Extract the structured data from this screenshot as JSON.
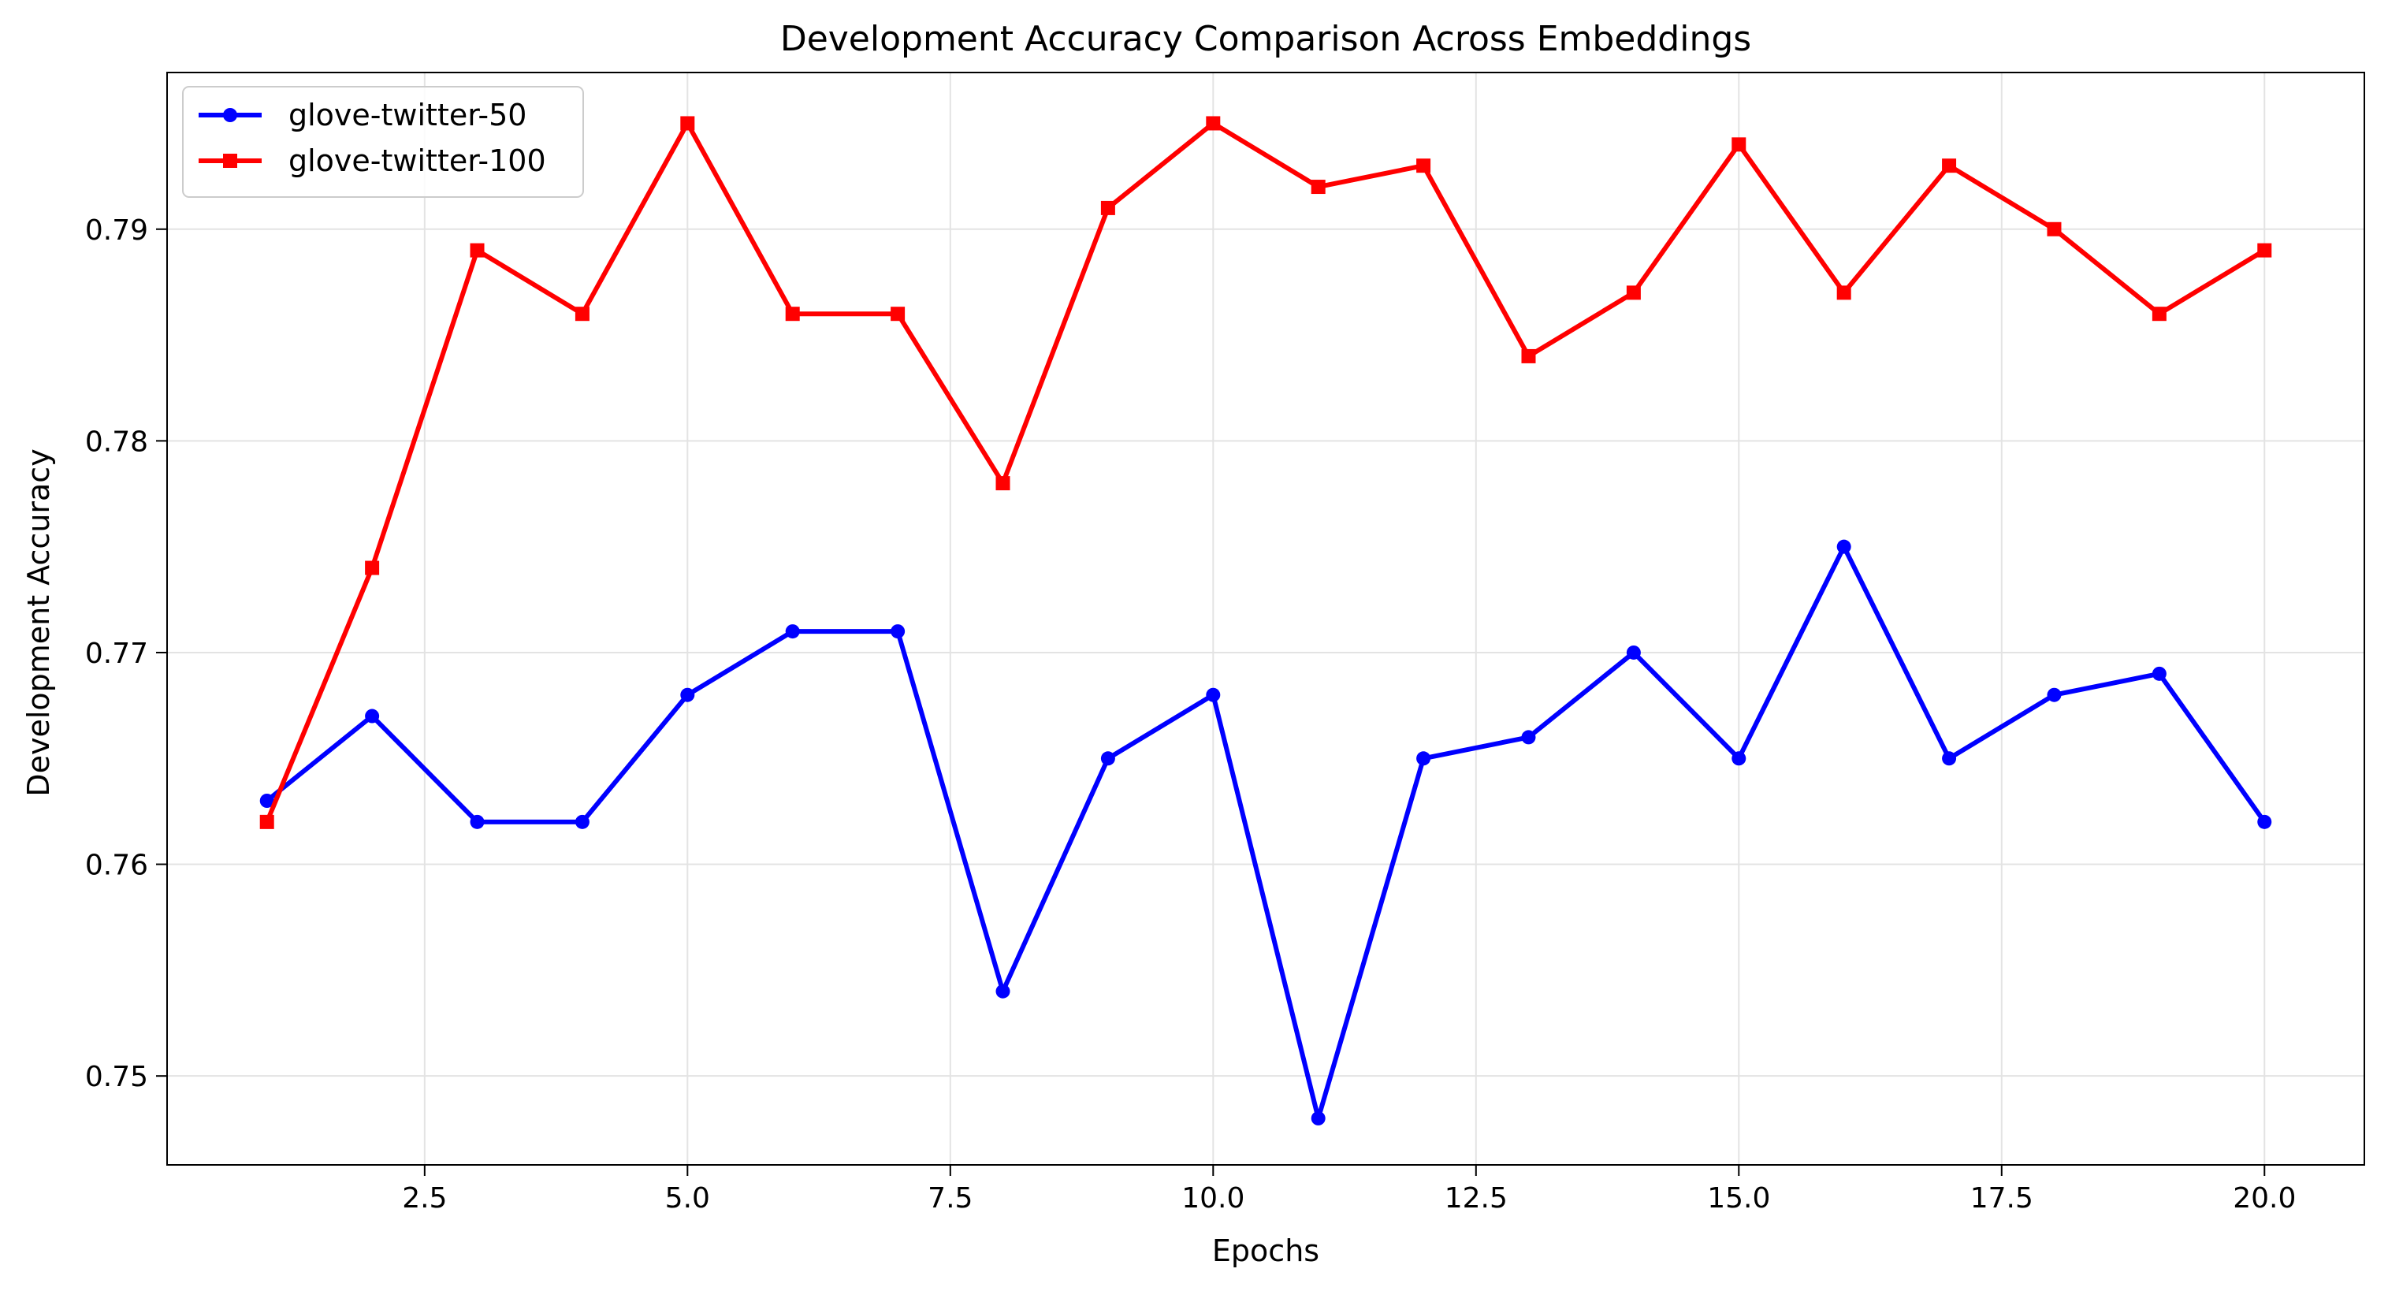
{
  "chart_data": {
    "type": "line",
    "title": "Development Accuracy Comparison Across Embeddings",
    "xlabel": "Epochs",
    "ylabel": "Development Accuracy",
    "xlim": [
      0.05,
      20.95
    ],
    "ylim": [
      0.7458,
      0.7974
    ],
    "xticks": [
      2.5,
      5.0,
      7.5,
      10.0,
      12.5,
      15.0,
      17.5,
      20.0
    ],
    "xtick_labels": [
      "2.5",
      "5.0",
      "7.5",
      "10.0",
      "12.5",
      "15.0",
      "17.5",
      "20.0"
    ],
    "yticks": [
      0.75,
      0.76,
      0.77,
      0.78,
      0.79
    ],
    "ytick_labels": [
      "0.75",
      "0.76",
      "0.77",
      "0.78",
      "0.79"
    ],
    "grid": true,
    "legend_position": "top-left",
    "x": [
      1,
      2,
      3,
      4,
      5,
      6,
      7,
      8,
      9,
      10,
      11,
      12,
      13,
      14,
      15,
      16,
      17,
      18,
      19,
      20
    ],
    "series": [
      {
        "name": "glove-twitter-50",
        "color": "#0000ff",
        "marker": "circle",
        "values": [
          0.763,
          0.767,
          0.762,
          0.762,
          0.768,
          0.771,
          0.771,
          0.754,
          0.765,
          0.768,
          0.748,
          0.765,
          0.766,
          0.77,
          0.765,
          0.775,
          0.765,
          0.768,
          0.769,
          0.762
        ]
      },
      {
        "name": "glove-twitter-100",
        "color": "#ff0000",
        "marker": "square",
        "values": [
          0.762,
          0.774,
          0.789,
          0.786,
          0.795,
          0.786,
          0.786,
          0.778,
          0.791,
          0.795,
          0.792,
          0.793,
          0.784,
          0.787,
          0.794,
          0.787,
          0.793,
          0.79,
          0.786,
          0.789
        ]
      }
    ]
  }
}
